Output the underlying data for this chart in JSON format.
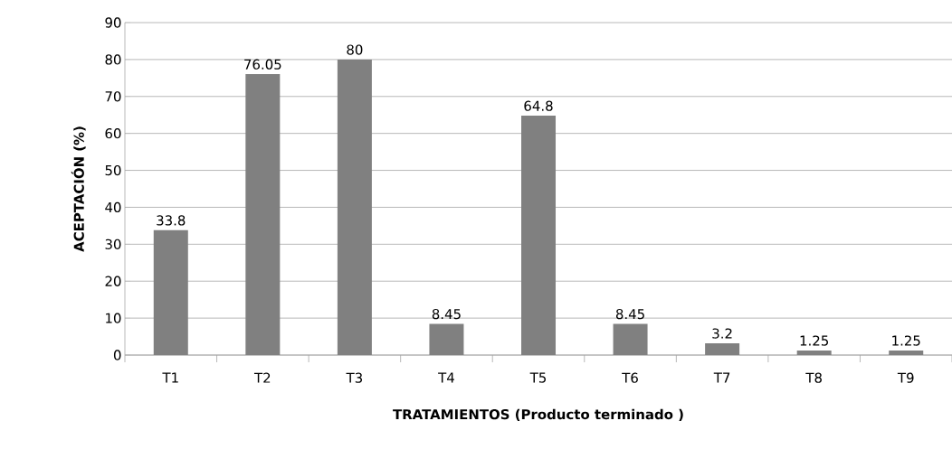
{
  "chart_data": {
    "type": "bar",
    "xlabel": "TRATAMIENTOS (Producto terminado )",
    "ylabel": "ACEPTACIÓN (%)",
    "categories": [
      "T1",
      "T2",
      "T3",
      "T4",
      "T5",
      "T6",
      "T7",
      "T8",
      "T9"
    ],
    "values": [
      33.8,
      76.05,
      80,
      8.45,
      64.8,
      8.45,
      3.2,
      1.25,
      1.25
    ],
    "color": "#808080",
    "data_labels": true,
    "grid": "y",
    "ylim": [
      0,
      90
    ],
    "yticks": [
      0,
      10,
      20,
      30,
      40,
      50,
      60,
      70,
      80,
      90
    ]
  }
}
